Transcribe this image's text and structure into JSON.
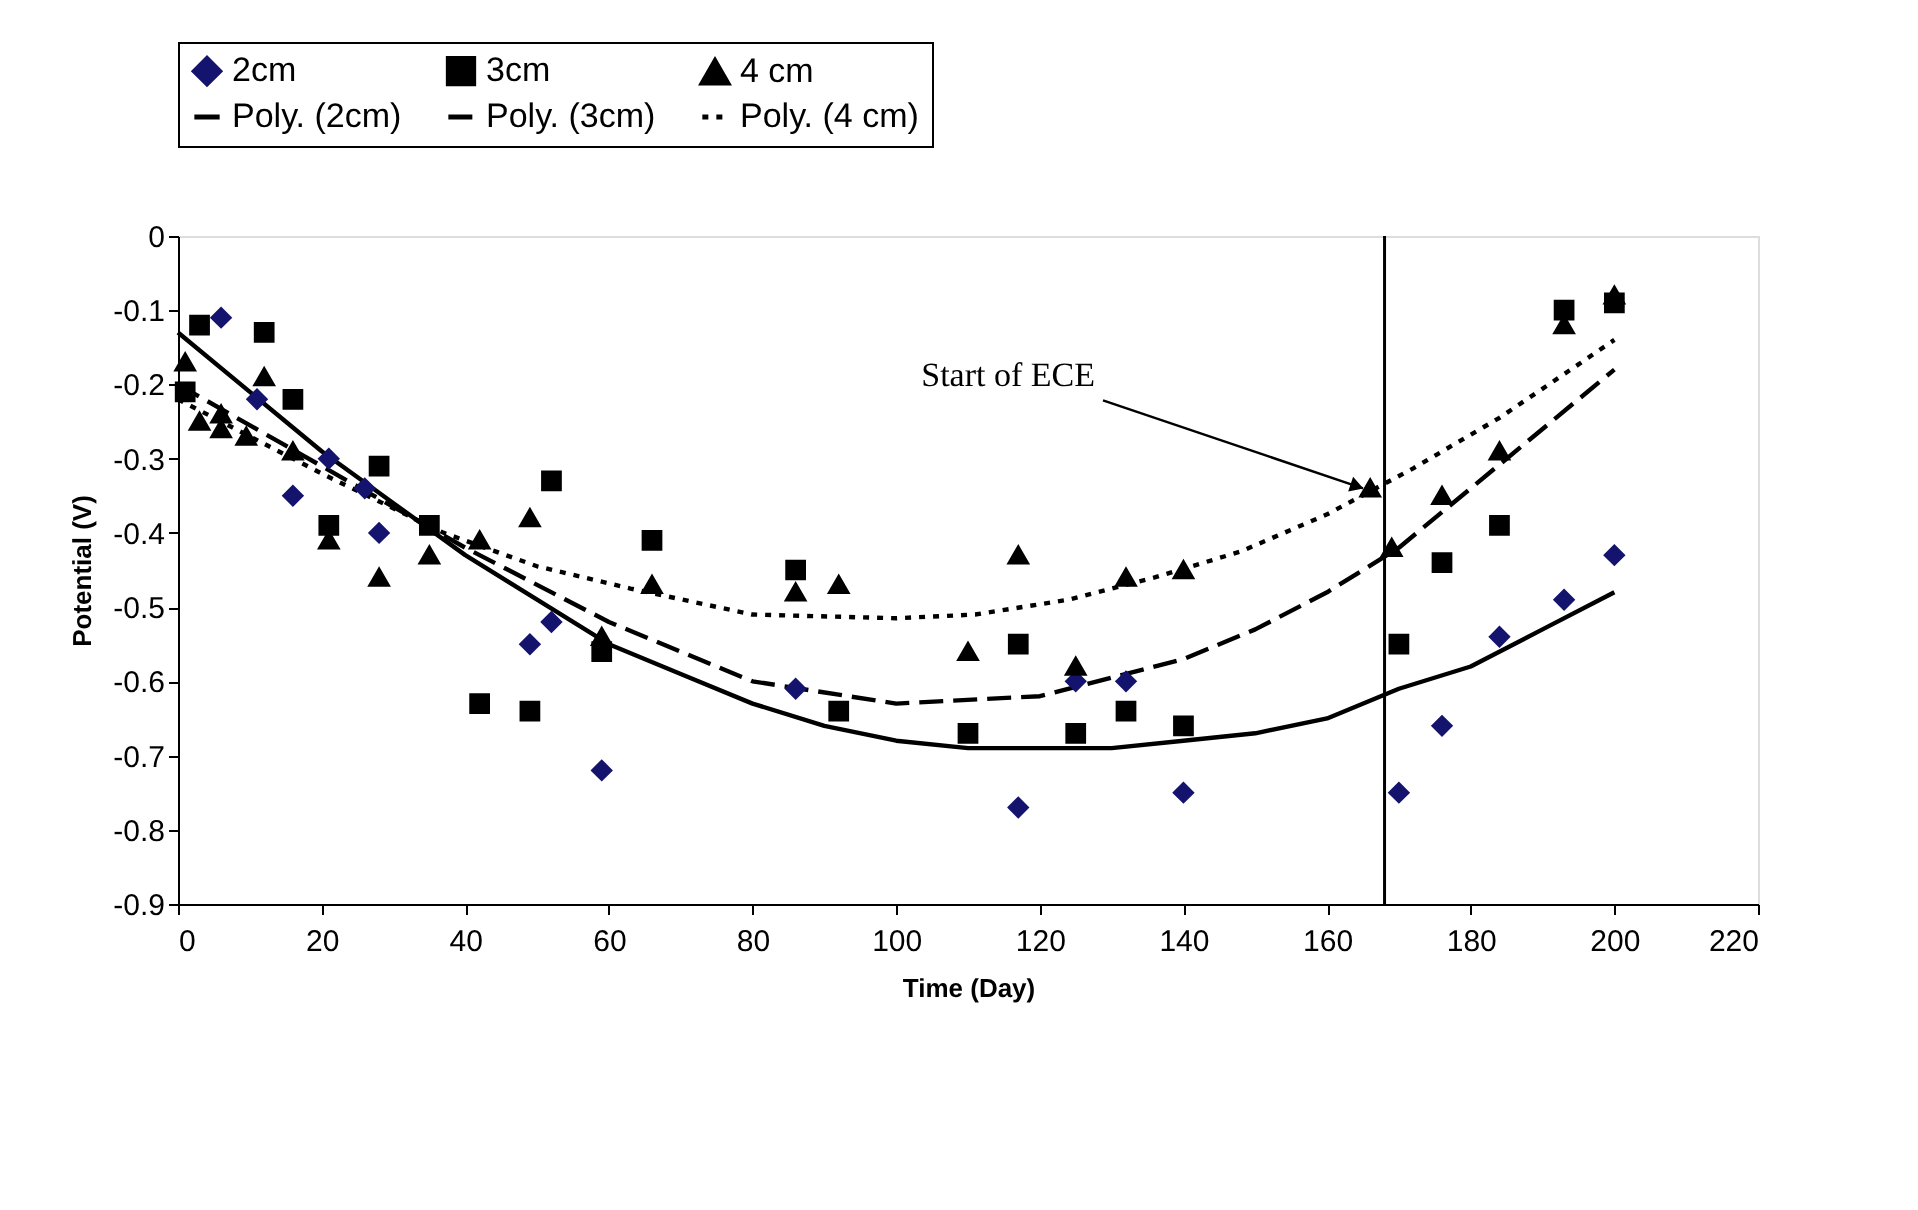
{
  "chart_data": {
    "type": "scatter",
    "xlabel": "Time (Day)",
    "ylabel": "Potential (V)",
    "xlim": [
      0,
      220
    ],
    "xticks": [
      0,
      20,
      40,
      60,
      80,
      100,
      120,
      140,
      160,
      180,
      200,
      220
    ],
    "ylim": [
      -0.9,
      0
    ],
    "yticks": [
      0,
      -0.1,
      -0.2,
      -0.3,
      -0.4,
      -0.5,
      -0.6,
      -0.7,
      -0.8,
      -0.9
    ],
    "grid": false,
    "legend": "top",
    "series": [
      {
        "name": "2cm",
        "marker": "diamond",
        "color": "#14146e",
        "x": [
          6,
          11,
          16,
          21,
          26,
          28,
          49,
          52,
          59,
          86,
          117,
          125,
          132,
          140,
          170,
          176,
          184,
          193,
          200
        ],
        "values": [
          -0.11,
          -0.22,
          -0.35,
          -0.3,
          -0.34,
          -0.4,
          -0.55,
          -0.52,
          -0.72,
          -0.61,
          -0.77,
          -0.6,
          -0.6,
          -0.75,
          -0.75,
          -0.66,
          -0.54,
          -0.49,
          -0.43
        ]
      },
      {
        "name": "3cm",
        "marker": "square",
        "color": "#000000",
        "x": [
          1,
          3,
          12,
          16,
          21,
          28,
          35,
          42,
          49,
          52,
          59,
          66,
          86,
          92,
          110,
          117,
          125,
          132,
          140,
          170,
          176,
          184,
          193,
          200
        ],
        "values": [
          -0.21,
          -0.12,
          -0.13,
          -0.22,
          -0.39,
          -0.31,
          -0.39,
          -0.63,
          -0.64,
          -0.33,
          -0.56,
          -0.41,
          -0.45,
          -0.64,
          -0.67,
          -0.55,
          -0.67,
          -0.64,
          -0.66,
          -0.55,
          -0.44,
          -0.39,
          -0.1,
          -0.09
        ]
      },
      {
        "name": "4 cm",
        "marker": "triangle",
        "color": "#000000",
        "x": [
          1,
          3,
          6,
          6,
          9.5,
          12,
          16,
          21,
          28,
          35,
          42,
          49,
          59,
          66,
          86,
          92,
          110,
          117,
          125,
          132,
          140,
          166,
          169,
          176,
          184,
          193,
          200
        ],
        "values": [
          -0.17,
          -0.25,
          -0.24,
          -0.26,
          -0.27,
          -0.19,
          -0.29,
          -0.41,
          -0.46,
          -0.43,
          -0.41,
          -0.38,
          -0.54,
          -0.47,
          -0.48,
          -0.47,
          -0.56,
          -0.43,
          -0.58,
          -0.46,
          -0.45,
          -0.34,
          -0.42,
          -0.35,
          -0.29,
          -0.12,
          -0.08
        ]
      },
      {
        "name": "Poly. (2cm)",
        "type": "line",
        "line_style": "solid",
        "color": "#000000",
        "x": [
          0,
          10,
          20,
          30,
          40,
          50,
          60,
          70,
          80,
          90,
          100,
          110,
          120,
          130,
          140,
          150,
          160,
          170,
          180,
          190,
          200
        ],
        "values": [
          -0.13,
          -0.21,
          -0.29,
          -0.36,
          -0.43,
          -0.49,
          -0.55,
          -0.59,
          -0.63,
          -0.66,
          -0.68,
          -0.69,
          -0.69,
          -0.69,
          -0.68,
          -0.67,
          -0.65,
          -0.61,
          -0.58,
          -0.53,
          -0.48
        ]
      },
      {
        "name": "Poly. (3cm)",
        "type": "line",
        "line_style": "dashed",
        "color": "#000000",
        "x": [
          0,
          20,
          40,
          60,
          80,
          100,
          120,
          140,
          150,
          160,
          170,
          180,
          190,
          200
        ],
        "values": [
          -0.2,
          -0.31,
          -0.42,
          -0.52,
          -0.6,
          -0.63,
          -0.62,
          -0.57,
          -0.53,
          -0.48,
          -0.42,
          -0.34,
          -0.26,
          -0.18
        ]
      },
      {
        "name": "Poly. (4 cm)",
        "type": "line",
        "line_style": "dotted",
        "color": "#000000",
        "x": [
          0,
          20,
          37,
          50,
          63,
          80,
          100,
          111,
          124,
          136,
          148,
          160,
          172,
          184,
          195,
          200
        ],
        "values": [
          -0.22,
          -0.32,
          -0.4,
          -0.445,
          -0.475,
          -0.51,
          -0.515,
          -0.51,
          -0.49,
          -0.46,
          -0.425,
          -0.375,
          -0.313,
          -0.245,
          -0.173,
          -0.14
        ]
      }
    ],
    "ref_lines": [
      {
        "axis": "x",
        "value": 168,
        "color": "#000000"
      }
    ],
    "annotations": [
      {
        "text": "Start of ECE",
        "x": 165,
        "y": -0.34
      }
    ]
  }
}
